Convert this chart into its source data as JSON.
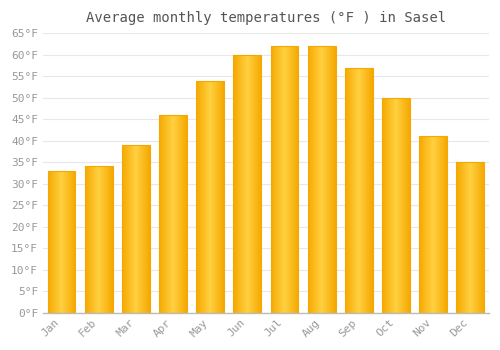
{
  "title": "Average monthly temperatures (°F ) in Sasel",
  "months": [
    "Jan",
    "Feb",
    "Mar",
    "Apr",
    "May",
    "Jun",
    "Jul",
    "Aug",
    "Sep",
    "Oct",
    "Nov",
    "Dec"
  ],
  "values": [
    33,
    34,
    39,
    46,
    54,
    60,
    62,
    62,
    57,
    50,
    41,
    35
  ],
  "bar_color_center": "#FFD040",
  "bar_color_edge": "#F5A800",
  "ylim": [
    0,
    65
  ],
  "yticks": [
    0,
    5,
    10,
    15,
    20,
    25,
    30,
    35,
    40,
    45,
    50,
    55,
    60,
    65
  ],
  "ytick_labels": [
    "0°F",
    "5°F",
    "10°F",
    "15°F",
    "20°F",
    "25°F",
    "30°F",
    "35°F",
    "40°F",
    "45°F",
    "50°F",
    "55°F",
    "60°F",
    "65°F"
  ],
  "background_color": "#ffffff",
  "grid_color": "#e8e8e8",
  "tick_label_color": "#999999",
  "title_color": "#555555",
  "title_fontsize": 10,
  "tick_fontsize": 8,
  "font_family": "monospace",
  "bar_width": 0.75
}
